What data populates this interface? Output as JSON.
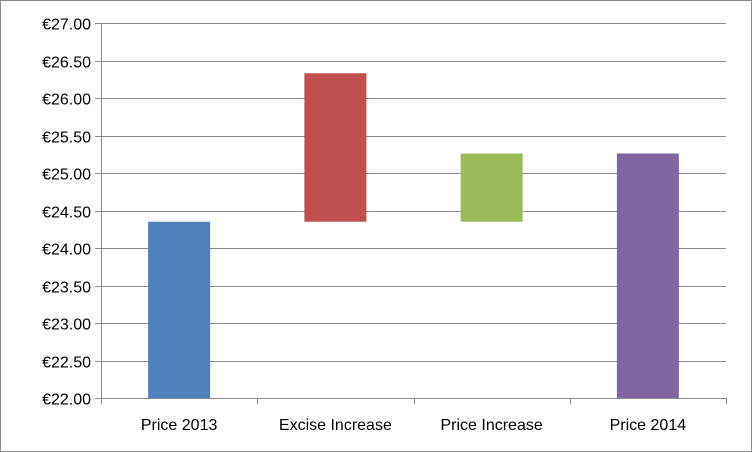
{
  "chart_data": {
    "type": "bar",
    "subtype": "waterfall",
    "title": "",
    "xlabel": "",
    "ylabel": "",
    "categories": [
      "Price 2013",
      "Excise Increase",
      "Price Increase",
      "Price 2014"
    ],
    "bars": [
      {
        "category": "Price 2013",
        "start": 22.0,
        "end": 24.35,
        "color": "#4f81bd"
      },
      {
        "category": "Excise Increase",
        "start": 24.35,
        "end": 26.33,
        "color": "#c0504d"
      },
      {
        "category": "Price Increase",
        "start": 24.35,
        "end": 25.26,
        "color": "#9bbb59"
      },
      {
        "category": "Price 2014",
        "start": 22.0,
        "end": 25.26,
        "color": "#8064a2"
      }
    ],
    "ylim": [
      22.0,
      27.0
    ],
    "y_ticks": [
      "€22.00",
      "€22.50",
      "€23.00",
      "€23.50",
      "€24.00",
      "€24.50",
      "€25.00",
      "€25.50",
      "€26.00",
      "€26.50",
      "€27.00"
    ],
    "y_tick_values": [
      22.0,
      22.5,
      23.0,
      23.5,
      24.0,
      24.5,
      25.0,
      25.5,
      26.0,
      26.5,
      27.0
    ],
    "grid": true,
    "legend": "none"
  }
}
